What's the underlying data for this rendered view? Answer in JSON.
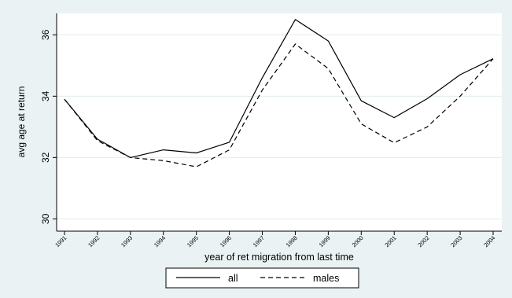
{
  "chart_data": {
    "type": "line",
    "title": "",
    "xlabel": "year of ret migration from last time",
    "ylabel": "avg age at return",
    "categories": [
      "1991",
      "1992",
      "1993",
      "1994",
      "1995",
      "1996",
      "1997",
      "1998",
      "1999",
      "2000",
      "2001",
      "2002",
      "2003",
      "2004"
    ],
    "y_ticks": [
      "30",
      "32",
      "34",
      "36"
    ],
    "ylim": [
      29.6,
      36.7
    ],
    "grid": "horizontal",
    "legend_position": "bottom",
    "series": [
      {
        "name": "all",
        "style": "solid",
        "color": "#000000",
        "values": [
          33.9,
          32.6,
          32.0,
          32.25,
          32.15,
          32.5,
          34.6,
          36.5,
          35.8,
          33.85,
          33.3,
          33.92,
          34.7,
          35.22
        ]
      },
      {
        "name": "males",
        "style": "dashed",
        "color": "#000000",
        "values": [
          33.9,
          32.55,
          32.0,
          31.9,
          31.7,
          32.25,
          34.2,
          35.7,
          34.9,
          33.1,
          32.48,
          33.0,
          34.0,
          35.22
        ]
      }
    ]
  },
  "colors": {
    "background": "#eaf2f3",
    "plot_area": "#ffffff",
    "grid": "#e3ecee",
    "line": "#000000"
  }
}
